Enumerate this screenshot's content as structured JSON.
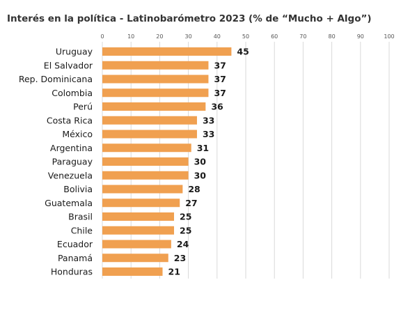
{
  "chart_data": {
    "type": "bar",
    "orientation": "horizontal",
    "title": "Interés en la política -  Latinobarómetro 2023 (% de “Mucho + Algo”)",
    "categories": [
      "Uruguay",
      "El Salvador",
      "Rep. Dominicana",
      "Colombia",
      "Perú",
      "Costa Rica",
      "México",
      "Argentina",
      "Paraguay",
      "Venezuela",
      "Bolivia",
      "Guatemala",
      "Brasil",
      "Chile",
      "Ecuador",
      "Panamá",
      "Honduras"
    ],
    "values": [
      45,
      37,
      37,
      37,
      36,
      33,
      33,
      31,
      30,
      30,
      28,
      27,
      25,
      25,
      24,
      23,
      21
    ],
    "xlim": [
      0,
      100
    ],
    "x_ticks": [
      "0",
      "10",
      "20",
      "30",
      "40",
      "50",
      "60",
      "70",
      "80",
      "90",
      "100"
    ],
    "x_axis_position": "top",
    "grid": true,
    "bar_color": "#f0a050",
    "data_labels": true,
    "legend": "none"
  }
}
